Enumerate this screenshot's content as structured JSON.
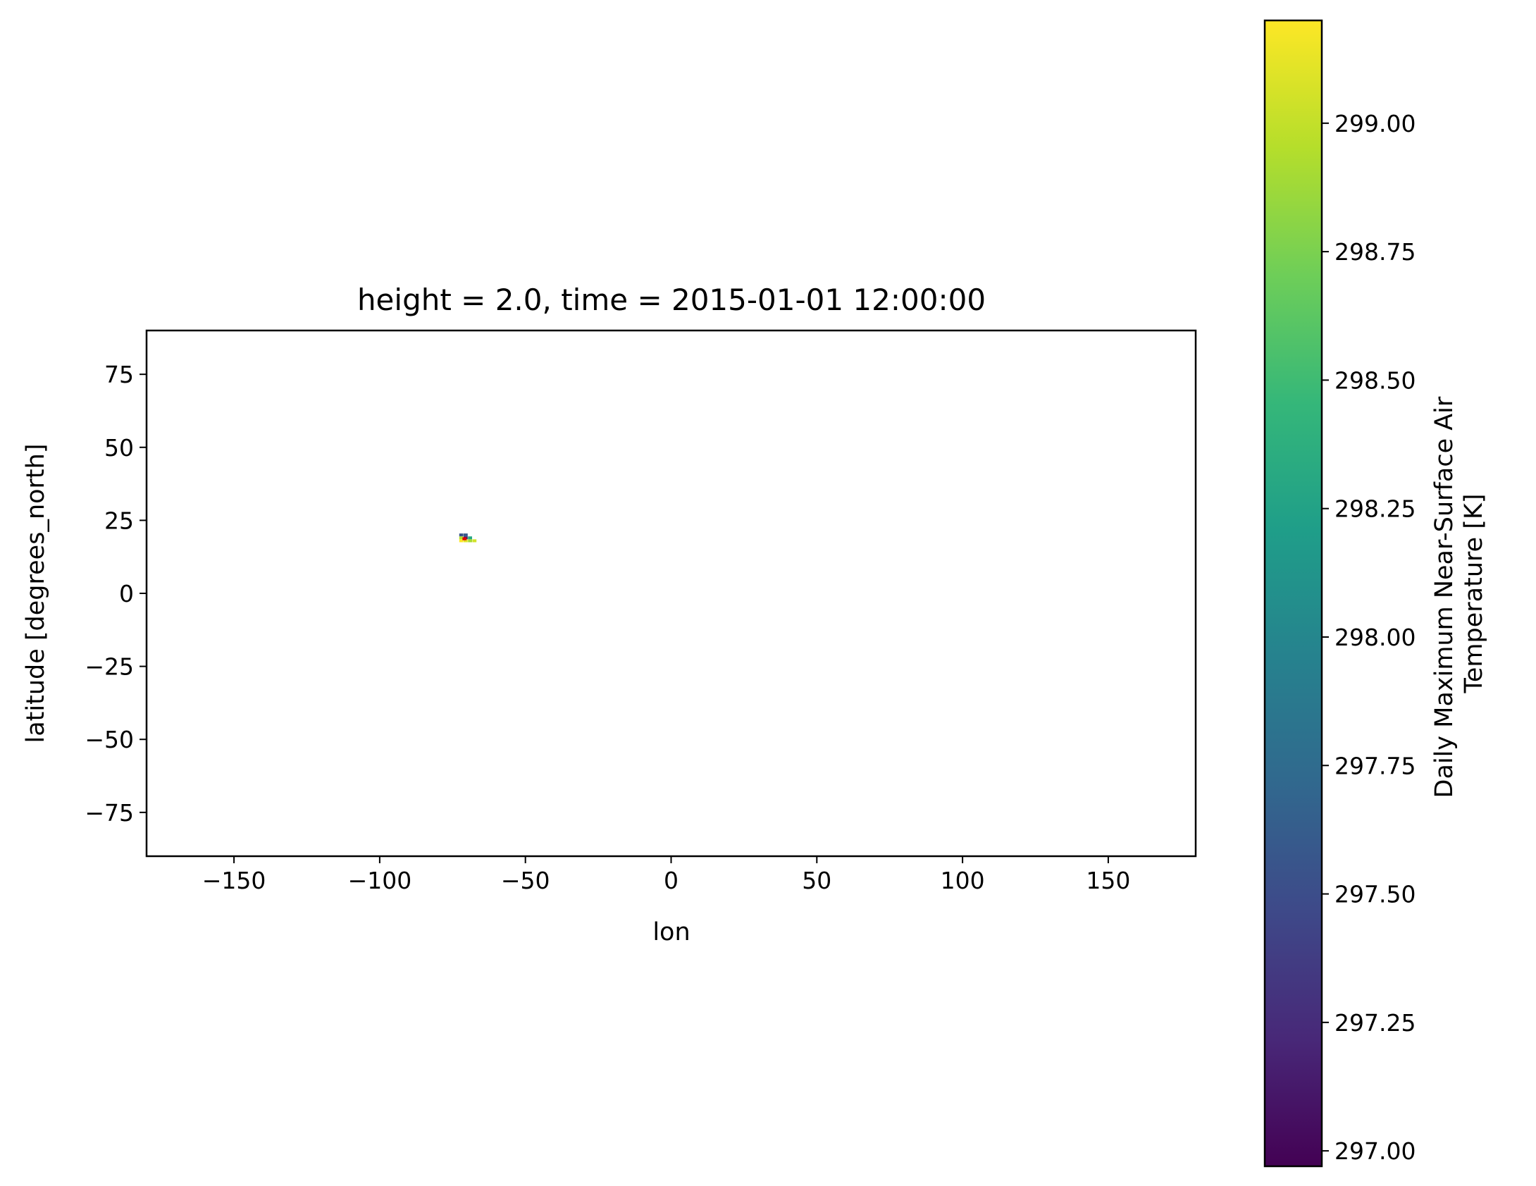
{
  "chart_data": {
    "type": "heatmap",
    "title": "height = 2.0, time = 2015-01-01 12:00:00",
    "xlabel": "lon",
    "ylabel": "latitude [degrees_north]",
    "xlim": [
      -180,
      180
    ],
    "ylim": [
      -90,
      90
    ],
    "x_ticks": [
      -150,
      -100,
      -50,
      0,
      50,
      100,
      150
    ],
    "x_tick_labels": [
      "−150",
      "−100",
      "−50",
      "0",
      "50",
      "100",
      "150"
    ],
    "y_ticks": [
      75,
      50,
      25,
      0,
      -25,
      -50,
      -75
    ],
    "y_tick_labels": [
      "75",
      "50",
      "25",
      "0",
      "−25",
      "−50",
      "−75"
    ],
    "grid": false,
    "colorbar": {
      "label_lines": [
        "Daily Maximum Near-Surface Air",
        "Temperature [K]"
      ],
      "colormap": "viridis",
      "vmin": 296.97,
      "vmax": 299.2,
      "ticks": [
        297.0,
        297.25,
        297.5,
        297.75,
        298.0,
        298.25,
        298.5,
        298.75,
        299.0
      ],
      "tick_labels": [
        "297.00",
        "297.25",
        "297.50",
        "297.75",
        "298.00",
        "298.25",
        "298.50",
        "298.75",
        "299.00"
      ]
    },
    "cells": [
      {
        "lon": -72.0,
        "lat": 20.0,
        "value": 297.55
      },
      {
        "lon": -70.5,
        "lat": 20.0,
        "value": 297.6
      },
      {
        "lon": -72.0,
        "lat": 19.0,
        "value": 298.95
      },
      {
        "lon": -70.5,
        "lat": 19.0,
        "value": 297.15
      },
      {
        "lon": -69.0,
        "lat": 19.0,
        "value": 298.3
      },
      {
        "lon": -72.0,
        "lat": 18.0,
        "value": 299.2
      },
      {
        "lon": -70.5,
        "lat": 18.0,
        "value": 299.1
      },
      {
        "lon": -69.0,
        "lat": 18.0,
        "value": 298.9
      },
      {
        "lon": -67.5,
        "lat": 18.0,
        "value": 299.05
      }
    ],
    "highlight_cells": [
      {
        "lon": -71.2,
        "lat": 18.7,
        "color": "#e00000"
      },
      {
        "lon": -70.6,
        "lat": 18.7,
        "color": "#e00000"
      }
    ],
    "cell_size": {
      "lon": 1.4,
      "lat": 1.0
    }
  }
}
